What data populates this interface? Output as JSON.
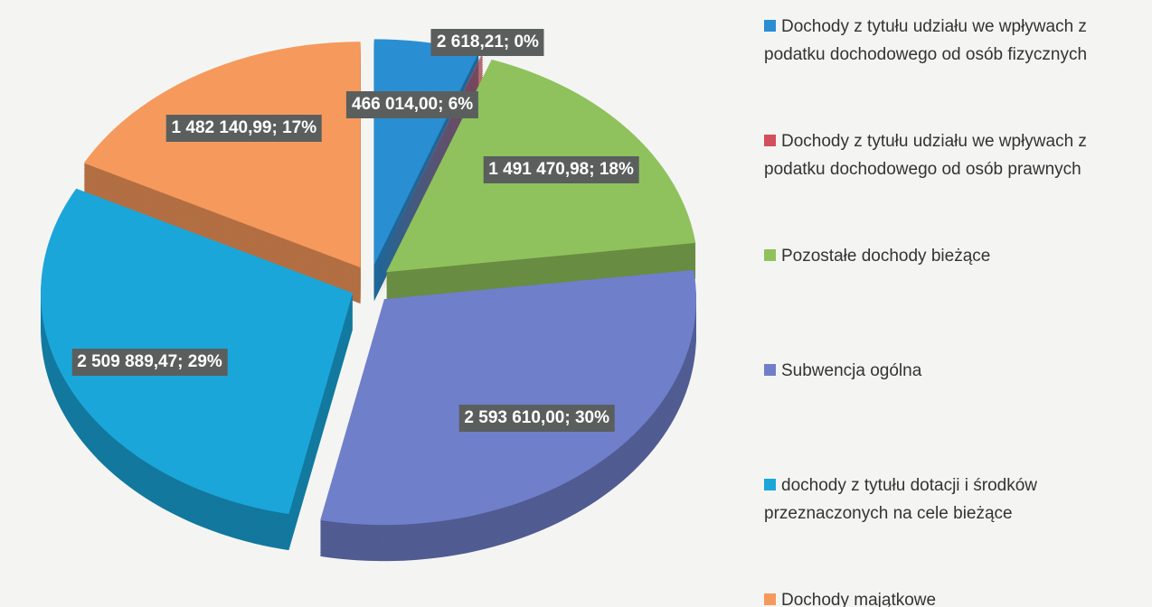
{
  "chart_data": {
    "type": "pie",
    "categories": [
      "Dochody z tytułu udziału we wpływach z podatku dochodowego od osób fizycznych",
      "Dochody z tytułu udziału we wpływach z podatku dochodowego od osób prawnych",
      "Pozostałe dochody bieżące",
      "Subwencja ogólna",
      "dochody z tytułu dotacji i środków przeznaczonych na cele bieżące",
      "Dochody majątkowe"
    ],
    "values": [
      466014.0,
      2618.21,
      1491470.98,
      2593610.0,
      2509889.47,
      1482140.99
    ],
    "value_labels": [
      "466 014,00; 6%",
      "2 618,21; 0%",
      "1 491 470,98; 18%",
      "2 593 610,00; 30%",
      "2 509 889,47; 29%",
      "1 482 140,99; 17%"
    ],
    "colors": [
      "#2a8ed2",
      "#d2505c",
      "#8fc25c",
      "#6f7fca",
      "#1ba6da",
      "#f6995c"
    ],
    "legend": "right"
  }
}
